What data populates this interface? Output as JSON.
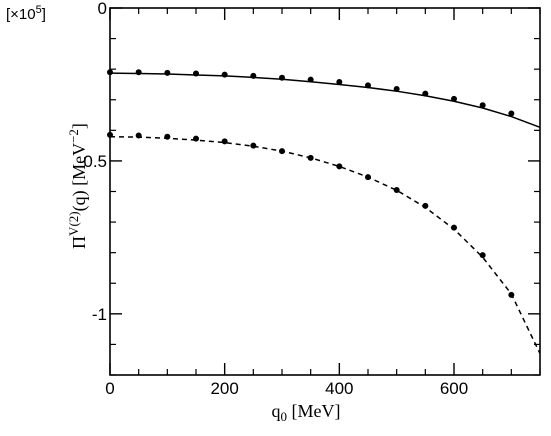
{
  "chart_data": {
    "type": "line",
    "scale_note": {
      "prefix": "[×10",
      "exponent": "5",
      "suffix": "]"
    },
    "xlabel": {
      "main": "q",
      "sub": "0",
      "unit": " [MeV]"
    },
    "ylabel": {
      "main": "Π",
      "sup": "V(2)",
      "arg": "(q) [MeV",
      "unit_sup": "−2",
      "close": "]"
    },
    "xlim": [
      0,
      750
    ],
    "ylim": [
      -1.2,
      0.0
    ],
    "x_ticks": [
      0,
      200,
      400,
      600
    ],
    "x_tick_labels": [
      "0",
      "200",
      "400",
      "600"
    ],
    "x_minor_step": 50,
    "y_ticks": [
      0,
      -0.5,
      -1
    ],
    "y_tick_labels": [
      "0",
      "-0.5",
      "-1"
    ],
    "y_minor_step": 0.1,
    "grid": false,
    "legend": "none",
    "series": [
      {
        "style": "solid",
        "x": [
          0,
          50,
          100,
          150,
          200,
          250,
          300,
          350,
          400,
          450,
          500,
          550,
          600,
          650,
          700,
          750
        ],
        "y": [
          -0.213,
          -0.214,
          -0.216,
          -0.219,
          -0.222,
          -0.227,
          -0.233,
          -0.241,
          -0.25,
          -0.26,
          -0.272,
          -0.287,
          -0.305,
          -0.327,
          -0.355,
          -0.39
        ]
      },
      {
        "style": "dashed",
        "x": [
          0,
          50,
          100,
          150,
          200,
          250,
          300,
          350,
          400,
          450,
          500,
          550,
          600,
          650,
          700,
          750
        ],
        "y": [
          -0.421,
          -0.422,
          -0.426,
          -0.432,
          -0.44,
          -0.452,
          -0.468,
          -0.49,
          -0.518,
          -0.553,
          -0.596,
          -0.652,
          -0.723,
          -0.815,
          -0.935,
          -1.13
        ]
      },
      {
        "style": "points",
        "x": [
          0,
          50,
          100,
          150,
          200,
          250,
          300,
          350,
          400,
          450,
          500,
          550,
          600,
          650,
          700
        ],
        "y": [
          -0.21,
          -0.21,
          -0.212,
          -0.214,
          -0.218,
          -0.222,
          -0.228,
          -0.234,
          -0.242,
          -0.253,
          -0.265,
          -0.28,
          -0.297,
          -0.318,
          -0.345
        ]
      },
      {
        "style": "points",
        "x": [
          0,
          50,
          100,
          150,
          200,
          250,
          300,
          350,
          400,
          450,
          500,
          550,
          600,
          650,
          700
        ],
        "y": [
          -0.415,
          -0.417,
          -0.421,
          -0.427,
          -0.436,
          -0.45,
          -0.468,
          -0.49,
          -0.518,
          -0.553,
          -0.595,
          -0.647,
          -0.718,
          -0.808,
          -0.938
        ]
      }
    ]
  }
}
